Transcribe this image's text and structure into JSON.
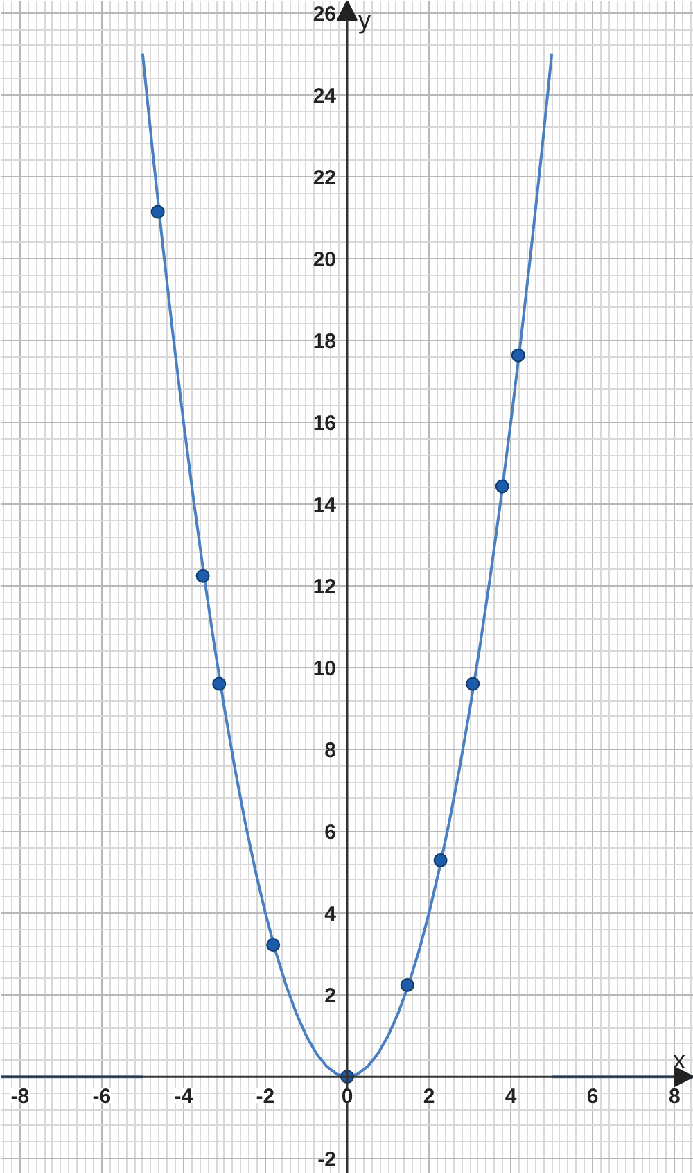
{
  "chart_data": {
    "type": "line",
    "xlabel": "x",
    "ylabel": "y",
    "xlim": [
      -8.47,
      8.47
    ],
    "ylim": [
      -2.37,
      26.3
    ],
    "xticks": [
      -8,
      -6,
      -4,
      -2,
      0,
      2,
      4,
      6,
      8
    ],
    "yticks": [
      -2,
      2,
      4,
      6,
      8,
      10,
      12,
      14,
      16,
      18,
      20,
      22,
      24,
      26
    ],
    "grid": true,
    "series": [
      {
        "color": "#4a7fc1",
        "marker": "none",
        "line_style": "solid",
        "x": [
          -8.47,
          -5,
          null,
          -5,
          -4.75,
          -4.5,
          -4.25,
          -4,
          -3.75,
          -3.5,
          -3.25,
          -3,
          -2.75,
          -2.5,
          -2.25,
          -2,
          -1.75,
          -1.5,
          -1.25,
          -1,
          -0.75,
          -0.5,
          -0.25,
          0,
          0.25,
          0.5,
          0.75,
          1,
          1.25,
          1.5,
          1.75,
          2,
          2.25,
          2.5,
          2.75,
          3,
          3.25,
          3.5,
          3.75,
          4,
          4.25,
          4.5,
          4.75,
          5,
          null,
          5,
          8.47
        ],
        "values": [
          0,
          0,
          null,
          25,
          22.5625,
          20.25,
          18.0625,
          16,
          14.0625,
          12.25,
          10.5625,
          9,
          7.5625,
          6.25,
          5.0625,
          4,
          3.0625,
          2.25,
          1.5625,
          1,
          0.5625,
          0.25,
          0.0625,
          0,
          0.0625,
          0.25,
          0.5625,
          1,
          1.5625,
          2.25,
          3.0625,
          4,
          5.0625,
          6.25,
          7.5625,
          9,
          10.5625,
          12.25,
          14.0625,
          16,
          18.0625,
          20.25,
          22.5625,
          25,
          null,
          0,
          0
        ]
      },
      {
        "type": "scatter",
        "color": "#1c5cab",
        "marker": "circle",
        "x": [
          -4.63,
          -3.53,
          -3.13,
          -1.81,
          0,
          1.47,
          2.28,
          3.07,
          3.79,
          4.18
        ],
        "values": [
          21.14,
          12.24,
          9.6,
          3.22,
          0,
          2.24,
          5.29,
          9.6,
          14.43,
          17.63
        ]
      }
    ]
  }
}
